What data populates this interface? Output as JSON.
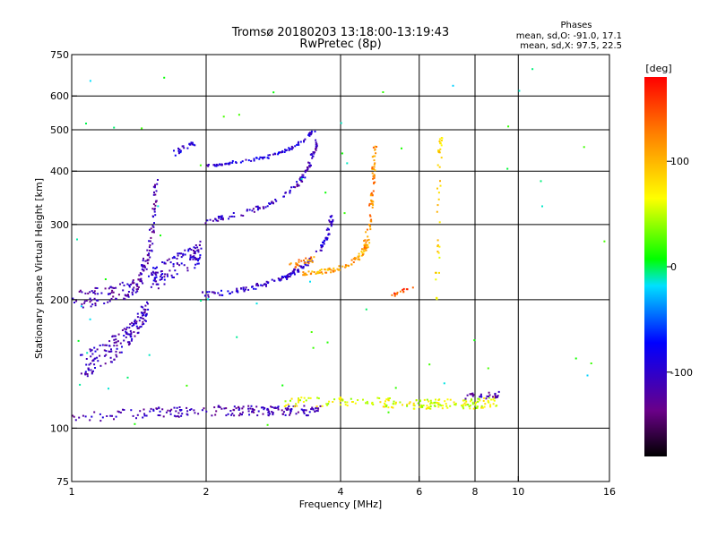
{
  "chart_data": {
    "type": "scatter",
    "title": "Tromsø 20180203 13:18:00-13:19:43",
    "subtitle": "RwPretec (8p)",
    "xlabel": "Frequency [MHz]",
    "ylabel": "Stationary phase Virtual Height [km]",
    "x_scale": "log",
    "y_scale": "log",
    "xlim": [
      1,
      16
    ],
    "ylim": [
      75,
      750
    ],
    "x_ticks": [
      1,
      2,
      4,
      6,
      8,
      10,
      16
    ],
    "x_tick_labels": [
      "1",
      "2",
      "4",
      "6",
      "8",
      "10",
      "16"
    ],
    "y_ticks": [
      75,
      100,
      200,
      300,
      400,
      500,
      600,
      750
    ],
    "y_tick_labels": [
      "75",
      "100",
      "200",
      "300",
      "400",
      "500",
      "600",
      "750"
    ],
    "grid": true,
    "stats": {
      "heading": "Phases",
      "o_line": "mean, sd,O: -91.0, 17.1",
      "x_line": "mean, sd,X:  97.5, 22.5"
    },
    "colorbar": {
      "label": "[deg]",
      "range": [
        -180,
        180
      ],
      "ticks": [
        100,
        0,
        -100
      ],
      "tick_labels": [
        "100",
        "0",
        "-100"
      ]
    },
    "colors": {
      "background": "#ffffff",
      "axes": "#000000"
    },
    "traces": [
      {
        "name": "",
        "shape": "curve",
        "f": [
          1.0,
          1.2,
          1.4,
          1.6,
          1.8,
          2.0,
          2.2,
          2.4,
          2.6,
          2.8,
          3.0,
          3.2,
          3.4,
          3.6
        ],
        "h": [
          107,
          107,
          108,
          109,
          109,
          110,
          110,
          110,
          110,
          110,
          110,
          110,
          110,
          110
        ],
        "phase": -115,
        "spread": 3,
        "count": 200
      },
      {
        "name": "",
        "shape": "curve",
        "f": [
          1.05,
          1.2,
          1.35,
          1.48
        ],
        "h": [
          140,
          150,
          165,
          190
        ],
        "phase": -110,
        "spread": 10,
        "count": 160
      },
      {
        "name": "",
        "shape": "curve",
        "f": [
          1.0,
          1.2,
          1.4,
          1.5,
          1.55
        ],
        "h": [
          200,
          205,
          215,
          260,
          380
        ],
        "phase": -118,
        "spread": 10,
        "count": 170
      },
      {
        "name": "",
        "shape": "curve",
        "f": [
          1.5,
          1.6,
          1.7,
          1.85,
          1.95
        ],
        "h": [
          220,
          230,
          240,
          250,
          260
        ],
        "phase": -105,
        "spread": 15,
        "count": 120
      },
      {
        "name": "",
        "shape": "curve",
        "f": [
          1.95,
          2.2,
          2.5,
          2.8,
          3.0,
          3.2,
          3.4,
          3.6,
          3.75,
          3.85
        ],
        "h": [
          205,
          208,
          213,
          220,
          226,
          234,
          245,
          262,
          285,
          320
        ],
        "phase": -100,
        "spread": 3,
        "count": 150
      },
      {
        "name": "",
        "shape": "curve",
        "f": [
          2.0,
          2.4,
          2.8,
          3.2,
          3.4,
          3.55
        ],
        "h": [
          305,
          318,
          335,
          370,
          410,
          470
        ],
        "phase": -110,
        "spread": 4,
        "count": 110
      },
      {
        "name": "",
        "shape": "curve",
        "f": [
          2.0,
          2.3,
          2.7,
          3.0,
          3.3,
          3.5
        ],
        "h": [
          410,
          420,
          430,
          445,
          470,
          500
        ],
        "phase": -95,
        "spread": 3,
        "count": 90
      },
      {
        "name": "",
        "shape": "curve",
        "f": [
          1.7,
          1.8,
          1.9
        ],
        "h": [
          440,
          455,
          470
        ],
        "phase": -90,
        "spread": 6,
        "count": 25
      },
      {
        "name": "",
        "shape": "curve",
        "f": [
          3.3,
          3.6,
          3.9,
          4.2,
          4.45,
          4.6
        ],
        "h": [
          230,
          232,
          236,
          242,
          255,
          270
        ],
        "phase": 110,
        "spread": 3,
        "count": 90
      },
      {
        "name": "",
        "shape": "curve",
        "f": [
          4.5,
          4.65,
          4.7,
          4.75,
          4.78
        ],
        "h": [
          255,
          300,
          350,
          400,
          470
        ],
        "phase": 120,
        "spread": 4,
        "count": 70
      },
      {
        "name": "",
        "shape": "curve",
        "f": [
          3.1,
          3.3,
          3.5
        ],
        "h": [
          240,
          245,
          250
        ],
        "phase": 120,
        "spread": 4,
        "count": 25
      },
      {
        "name": "",
        "shape": "curve",
        "f": [
          3.0,
          3.5,
          4.0,
          4.5,
          5.0,
          5.5,
          6.0,
          6.5,
          7.0,
          7.5,
          8.0,
          8.5,
          9.0
        ],
        "h": [
          115,
          115,
          116,
          115,
          115,
          114,
          114,
          114,
          114,
          114,
          114,
          115,
          115
        ],
        "phase": 60,
        "spread": 3,
        "count": 200
      },
      {
        "name": "",
        "shape": "curve",
        "f": [
          6.58,
          6.62,
          6.66,
          6.7
        ],
        "h": [
          200,
          300,
          400,
          500
        ],
        "phase": 80,
        "spread": 3,
        "count": 40
      },
      {
        "name": "",
        "shape": "curve",
        "f": [
          7.6,
          8.0,
          8.5,
          9.0
        ],
        "h": [
          118,
          119,
          119,
          120
        ],
        "phase": -120,
        "spread": 2,
        "count": 30
      },
      {
        "name": "",
        "shape": "curve",
        "f": [
          5.2,
          5.5,
          5.9
        ],
        "h": [
          205,
          210,
          212
        ],
        "phase": 150,
        "spread": 2,
        "count": 15
      },
      {
        "name": "",
        "shape": "scatter",
        "f": [
          1.0,
          16.0
        ],
        "h": [
          100,
          700
        ],
        "phase": 0,
        "spread": 180,
        "count": 60
      }
    ]
  }
}
